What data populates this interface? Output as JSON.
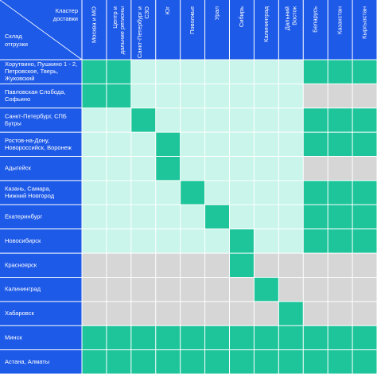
{
  "corner": {
    "columns_label": [
      "Кластер",
      "доставки"
    ],
    "rows_label": [
      "Склад",
      "отгрузки"
    ]
  },
  "columns": [
    [
      "Москва и МО"
    ],
    [
      "Центр и",
      "дальние регионы"
    ],
    [
      "Санкт-Петербург и",
      "СЗО"
    ],
    [
      "Юг"
    ],
    [
      "Поволжье"
    ],
    [
      "Урал"
    ],
    [
      "Сибирь"
    ],
    [
      "Калининград"
    ],
    [
      "Дальний",
      "Восток"
    ],
    [
      "Беларусь"
    ],
    [
      "Казахстан"
    ],
    [
      "Кыргызстан"
    ]
  ],
  "rows": [
    {
      "label": [
        "Хорутвино, Пушкино 1 - 2,",
        "Петровское, Тверь,",
        "Жуковский"
      ],
      "cells": [
        "#1ec59b",
        "#1ec59b",
        "#c9f5ea",
        "#c9f5ea",
        "#c9f5ea",
        "#c9f5ea",
        "#c9f5ea",
        "#c9f5ea",
        "#c9f5ea",
        "#1ec59b",
        "#1ec59b",
        "#1ec59b"
      ]
    },
    {
      "label": [
        "Павловская Слобода,",
        "Софьино"
      ],
      "cells": [
        "#1ec59b",
        "#1ec59b",
        "#c9f5ea",
        "#c9f5ea",
        "#c9f5ea",
        "#c9f5ea",
        "#c9f5ea",
        "#c9f5ea",
        "#c9f5ea",
        "#d6d6d6",
        "#d6d6d6",
        "#d6d6d6"
      ]
    },
    {
      "label": [
        "Санкт-Петербург, СПБ",
        "Бугры"
      ],
      "cells": [
        "#c9f5ea",
        "#c9f5ea",
        "#1ec59b",
        "#c9f5ea",
        "#c9f5ea",
        "#c9f5ea",
        "#c9f5ea",
        "#c9f5ea",
        "#c9f5ea",
        "#1ec59b",
        "#1ec59b",
        "#1ec59b"
      ]
    },
    {
      "label": [
        "Ростов-на-Дону,",
        "Новороссийск, Воронеж"
      ],
      "cells": [
        "#c9f5ea",
        "#c9f5ea",
        "#c9f5ea",
        "#1ec59b",
        "#c9f5ea",
        "#c9f5ea",
        "#c9f5ea",
        "#c9f5ea",
        "#c9f5ea",
        "#1ec59b",
        "#1ec59b",
        "#1ec59b"
      ]
    },
    {
      "label": [
        "Адыгейск"
      ],
      "cells": [
        "#c9f5ea",
        "#c9f5ea",
        "#c9f5ea",
        "#1ec59b",
        "#c9f5ea",
        "#c9f5ea",
        "#c9f5ea",
        "#c9f5ea",
        "#c9f5ea",
        "#d6d6d6",
        "#d6d6d6",
        "#d6d6d6"
      ]
    },
    {
      "label": [
        "Казань, Самара,",
        "Нижний Новгород"
      ],
      "cells": [
        "#c9f5ea",
        "#c9f5ea",
        "#c9f5ea",
        "#c9f5ea",
        "#1ec59b",
        "#c9f5ea",
        "#c9f5ea",
        "#c9f5ea",
        "#c9f5ea",
        "#1ec59b",
        "#1ec59b",
        "#1ec59b"
      ]
    },
    {
      "label": [
        "Екатеринбург"
      ],
      "cells": [
        "#c9f5ea",
        "#c9f5ea",
        "#c9f5ea",
        "#c9f5ea",
        "#c9f5ea",
        "#1ec59b",
        "#c9f5ea",
        "#c9f5ea",
        "#c9f5ea",
        "#1ec59b",
        "#1ec59b",
        "#1ec59b"
      ]
    },
    {
      "label": [
        "Новосибирск"
      ],
      "cells": [
        "#c9f5ea",
        "#c9f5ea",
        "#c9f5ea",
        "#c9f5ea",
        "#c9f5ea",
        "#c9f5ea",
        "#1ec59b",
        "#c9f5ea",
        "#c9f5ea",
        "#1ec59b",
        "#1ec59b",
        "#1ec59b"
      ]
    },
    {
      "label": [
        "Красноярск"
      ],
      "cells": [
        "#d6d6d6",
        "#d6d6d6",
        "#d6d6d6",
        "#d6d6d6",
        "#d6d6d6",
        "#d6d6d6",
        "#1ec59b",
        "#d6d6d6",
        "#d6d6d6",
        "#d6d6d6",
        "#d6d6d6",
        "#d6d6d6"
      ]
    },
    {
      "label": [
        "Калининград"
      ],
      "cells": [
        "#d6d6d6",
        "#d6d6d6",
        "#d6d6d6",
        "#d6d6d6",
        "#d6d6d6",
        "#d6d6d6",
        "#d6d6d6",
        "#1ec59b",
        "#d6d6d6",
        "#d6d6d6",
        "#d6d6d6",
        "#d6d6d6"
      ]
    },
    {
      "label": [
        "Хабаровск"
      ],
      "cells": [
        "#d6d6d6",
        "#d6d6d6",
        "#d6d6d6",
        "#d6d6d6",
        "#d6d6d6",
        "#d6d6d6",
        "#d6d6d6",
        "#d6d6d6",
        "#1ec59b",
        "#d6d6d6",
        "#d6d6d6",
        "#d6d6d6"
      ]
    },
    {
      "label": [
        "Минск"
      ],
      "cells": [
        "#1ec59b",
        "#1ec59b",
        "#1ec59b",
        "#1ec59b",
        "#1ec59b",
        "#1ec59b",
        "#1ec59b",
        "#1ec59b",
        "#1ec59b",
        "#1ec59b",
        "#1ec59b",
        "#1ec59b"
      ]
    },
    {
      "label": [
        "Астана, Алматы"
      ],
      "cells": [
        "#1ec59b",
        "#1ec59b",
        "#1ec59b",
        "#1ec59b",
        "#1ec59b",
        "#1ec59b",
        "#1ec59b",
        "#1ec59b",
        "#1ec59b",
        "#1ec59b",
        "#1ec59b",
        "#1ec59b"
      ]
    }
  ]
}
